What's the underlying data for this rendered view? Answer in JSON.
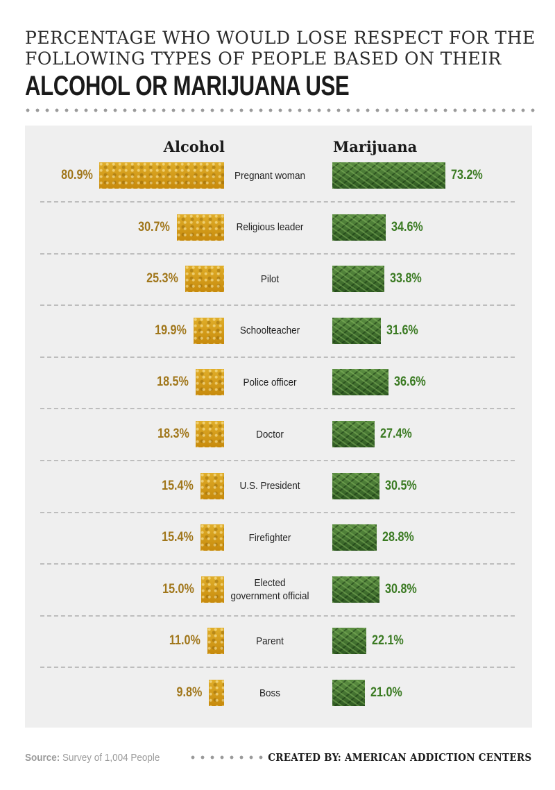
{
  "title": {
    "line1": "PERCENTAGE WHO WOULD LOSE RESPECT FOR THE",
    "line2": "FOLLOWING TYPES OF PEOPLE BASED ON THEIR",
    "main": "ALCOHOL OR MARIJUANA USE"
  },
  "footer": {
    "source_label": "Source:",
    "source_text": "Survey of 1,004 People",
    "credit": "CREATED BY: AMERICAN ADDICTION CENTERS"
  },
  "colors": {
    "alcohol": "#d29a12",
    "alcohol_text": "#a0761a",
    "marijuana": "#3e6b2d",
    "marijuana_text": "#3a7a22"
  },
  "chart_data": {
    "type": "bar",
    "orientation": "horizontal-diverging",
    "series": [
      {
        "name": "Alcohol",
        "values": [
          80.9,
          30.7,
          25.3,
          19.9,
          18.5,
          18.3,
          15.4,
          15.4,
          15.0,
          11.0,
          9.8
        ],
        "labels": [
          "80.9%",
          "30.7%",
          "25.3%",
          "19.9%",
          "18.5%",
          "18.3%",
          "15.4%",
          "15.4%",
          "15.0%",
          "11.0%",
          "9.8%"
        ]
      },
      {
        "name": "Marijuana",
        "values": [
          73.2,
          34.6,
          33.8,
          31.6,
          36.6,
          27.4,
          30.5,
          28.8,
          30.8,
          22.1,
          21.0
        ],
        "labels": [
          "73.2%",
          "34.6%",
          "33.8%",
          "31.6%",
          "36.6%",
          "27.4%",
          "30.5%",
          "28.8%",
          "30.8%",
          "22.1%",
          "21.0%"
        ]
      }
    ],
    "categories": [
      "Pregnant woman",
      "Religious leader",
      "Pilot",
      "Schoolteacher",
      "Police officer",
      "Doctor",
      "U.S. President",
      "Firefighter",
      "Elected\ngovernment official",
      "Parent",
      "Boss"
    ],
    "unit": "%"
  }
}
